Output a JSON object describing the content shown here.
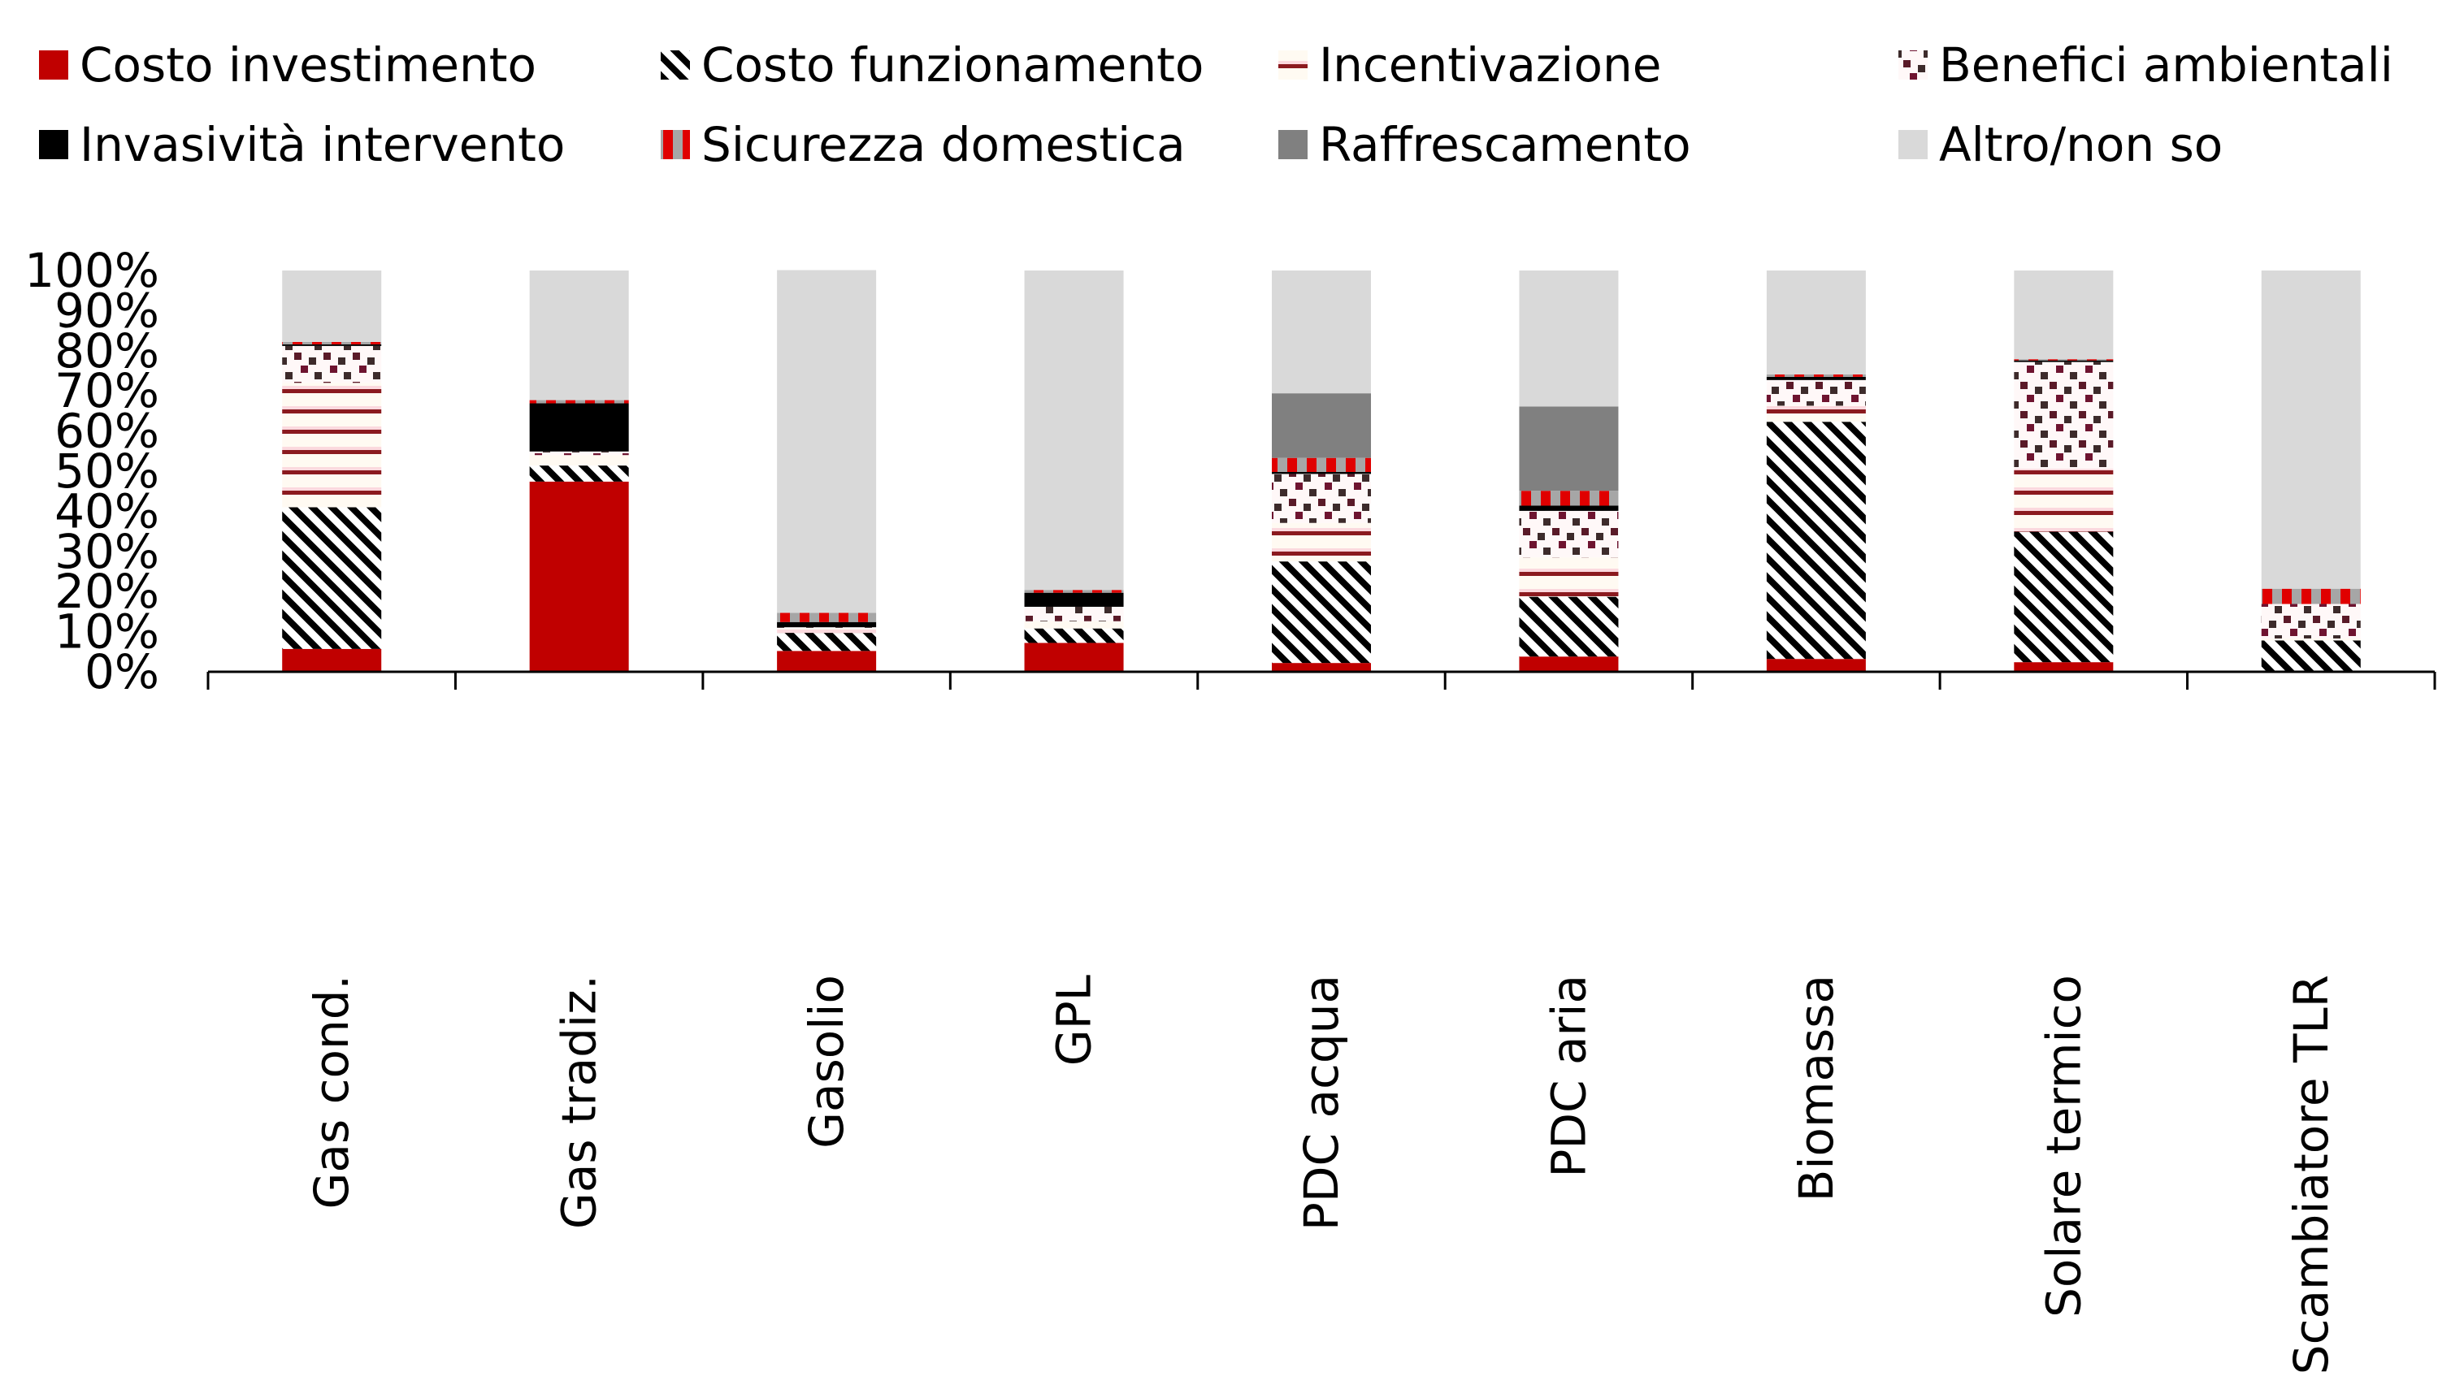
{
  "chart_data": {
    "type": "bar",
    "stacked": true,
    "orientation": "vertical",
    "title": "",
    "xlabel": "",
    "ylabel": "",
    "ylim": [
      0,
      100
    ],
    "y_ticks": [
      "0%",
      "10%",
      "20%",
      "30%",
      "40%",
      "50%",
      "60%",
      "70%",
      "80%",
      "90%",
      "100%"
    ],
    "grid": false,
    "legend_position": "top",
    "categories": [
      "Gas cond.",
      "Gas tradiz.",
      "Gasolio",
      "GPL",
      "PDC acqua",
      "PDC aria",
      "Biomassa",
      "Solare termico",
      "Scambiatore TLR"
    ],
    "series": [
      {
        "name": "Costo investimento",
        "pattern": "solid",
        "color": "#c00000",
        "values": [
          5.7,
          47.4,
          5.2,
          7.2,
          2.2,
          3.8,
          3.2,
          2.4,
          0
        ]
      },
      {
        "name": "Costo funzionamento",
        "pattern": "diagonal",
        "color": "#000000",
        "values": [
          35.3,
          4.0,
          4.5,
          3.6,
          25.3,
          14.9,
          59.1,
          32.5,
          7.8
        ]
      },
      {
        "name": "Incentivazione",
        "pattern": "horizontal-stripes",
        "color": "#8b1a1f",
        "values": [
          31.0,
          2.6,
          1.1,
          1.8,
          9.6,
          9.8,
          4.0,
          15.7,
          0.5
        ]
      },
      {
        "name": "Benefici ambientali",
        "pattern": "checker",
        "color": "#5a1a28",
        "values": [
          9.2,
          0.9,
          0.3,
          3.6,
          12.2,
          11.6,
          6.4,
          26.6,
          8.6
        ]
      },
      {
        "name": "Invasività intervento",
        "pattern": "solid",
        "color": "#000000",
        "values": [
          0.4,
          12.0,
          1.3,
          3.5,
          0.5,
          1.3,
          0.8,
          0.4,
          0
        ]
      },
      {
        "name": "Sicurezza domestica",
        "pattern": "vertical-stripes",
        "color": "#e00000",
        "values": [
          0.6,
          0.8,
          2.3,
          0.7,
          3.5,
          3.7,
          0.6,
          0.3,
          3.8
        ]
      },
      {
        "name": "Raffrescamento",
        "pattern": "solid",
        "color": "#808080",
        "values": [
          0,
          0,
          0,
          0,
          16.1,
          21.0,
          0,
          0,
          0
        ]
      },
      {
        "name": "Altro/non so",
        "pattern": "solid",
        "color": "#d9d9d9",
        "values": [
          17.8,
          32.3,
          85.4,
          79.6,
          30.6,
          33.9,
          25.9,
          22.1,
          79.3
        ]
      }
    ]
  }
}
